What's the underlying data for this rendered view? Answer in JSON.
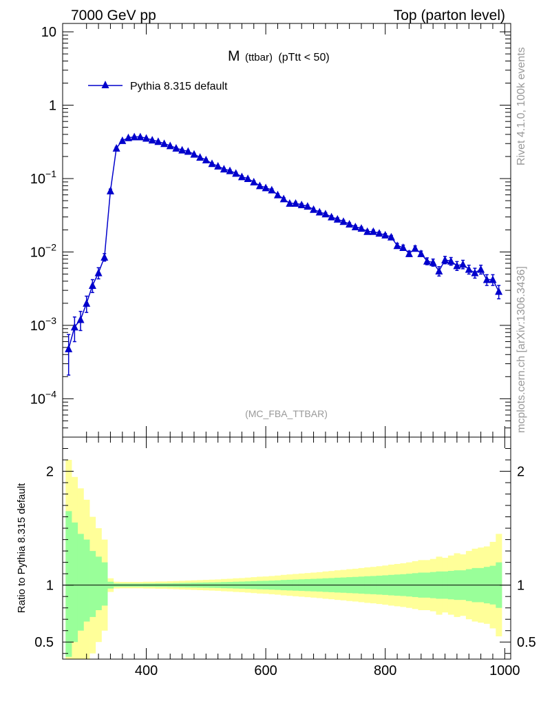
{
  "header": {
    "left": "7000 GeV pp",
    "right": "Top (parton level)"
  },
  "side_labels": {
    "rivet": "Rivet 4.1.0,  100k events",
    "source": "mcplots.cern.ch [arXiv:1306.3436]"
  },
  "colors": {
    "series": "#0000cc",
    "band_inner": "#99ff99",
    "band_outer": "#ffff99",
    "axis": "#000000",
    "watermark": "#999999"
  },
  "chart_data": [
    {
      "type": "line",
      "title_main": "M",
      "title_sub": "(ttbar)",
      "title_cut": "(pTtt < 50)",
      "watermark": "(MC_FBA_TTBAR)",
      "legend": [
        "Pythia 8.315 default"
      ],
      "legend_position": "top-left",
      "yscale": "log",
      "xlim": [
        260,
        1010
      ],
      "ylim": [
        3e-05,
        13
      ],
      "ytick_labels": [
        {
          "value": 10,
          "label": "10"
        },
        {
          "value": 1,
          "label": "1"
        },
        {
          "value": 0.1,
          "base": "10",
          "exp": "−1"
        },
        {
          "value": 0.01,
          "base": "10",
          "exp": "−2"
        },
        {
          "value": 0.001,
          "base": "10",
          "exp": "−3"
        },
        {
          "value": 0.0001,
          "base": "10",
          "exp": "−4"
        }
      ],
      "series": [
        {
          "name": "Pythia 8.315 default",
          "marker": "triangle",
          "x": [
            270,
            280,
            290,
            300,
            310,
            320,
            330,
            340,
            350,
            360,
            370,
            380,
            390,
            400,
            410,
            420,
            430,
            440,
            450,
            460,
            470,
            480,
            490,
            500,
            510,
            520,
            530,
            540,
            550,
            560,
            570,
            580,
            590,
            600,
            610,
            620,
            630,
            640,
            650,
            660,
            670,
            680,
            690,
            700,
            710,
            720,
            730,
            740,
            750,
            760,
            770,
            780,
            790,
            800,
            810,
            820,
            830,
            840,
            850,
            860,
            870,
            880,
            890,
            900,
            910,
            920,
            930,
            940,
            950,
            960,
            970,
            980,
            990
          ],
          "y": [
            0.00048,
            0.00095,
            0.0012,
            0.002,
            0.0035,
            0.0052,
            0.0085,
            0.068,
            0.26,
            0.33,
            0.36,
            0.37,
            0.37,
            0.355,
            0.335,
            0.32,
            0.3,
            0.28,
            0.26,
            0.245,
            0.235,
            0.215,
            0.195,
            0.18,
            0.16,
            0.148,
            0.135,
            0.128,
            0.118,
            0.106,
            0.1,
            0.09,
            0.08,
            0.075,
            0.07,
            0.06,
            0.053,
            0.046,
            0.046,
            0.044,
            0.042,
            0.038,
            0.035,
            0.033,
            0.03,
            0.028,
            0.026,
            0.024,
            0.022,
            0.021,
            0.019,
            0.019,
            0.018,
            0.017,
            0.016,
            0.0122,
            0.0115,
            0.0095,
            0.0112,
            0.0095,
            0.0075,
            0.0072,
            0.0055,
            0.0078,
            0.0075,
            0.0065,
            0.0068,
            0.0058,
            0.0052,
            0.0058,
            0.0042,
            0.0042,
            0.0029
          ],
          "yerr": [
            0.00027,
            0.00035,
            0.00035,
            0.0005,
            0.0007,
            0.0009,
            0.001,
            0.004,
            0.008,
            0.009,
            0.009,
            0.009,
            0.009,
            0.008,
            0.008,
            0.008,
            0.007,
            0.007,
            0.007,
            0.006,
            0.006,
            0.006,
            0.005,
            0.005,
            0.005,
            0.004,
            0.004,
            0.004,
            0.004,
            0.003,
            0.003,
            0.003,
            0.003,
            0.0025,
            0.0025,
            0.002,
            0.002,
            0.0018,
            0.0018,
            0.0017,
            0.0016,
            0.0015,
            0.0014,
            0.0013,
            0.0012,
            0.0012,
            0.0011,
            0.001,
            0.001,
            0.0009,
            0.0009,
            0.0009,
            0.0008,
            0.0008,
            0.0008,
            0.0009,
            0.0009,
            0.0008,
            0.0009,
            0.0008,
            0.0008,
            0.0008,
            0.0008,
            0.0009,
            0.0009,
            0.0009,
            0.0009,
            0.0008,
            0.0008,
            0.0008,
            0.0007,
            0.0007,
            0.0006
          ]
        }
      ]
    },
    {
      "type": "area",
      "ylabel": "Ratio to Pythia 8.315 default",
      "xlim": [
        260,
        1010
      ],
      "ylim": [
        0.35,
        2.3
      ],
      "x_ticks": [
        400,
        600,
        800,
        1000
      ],
      "y_tick_labels": [
        {
          "value": 2,
          "label": "2"
        },
        {
          "value": 1,
          "label": "1"
        },
        {
          "value": 0.5,
          "label": "0.5"
        }
      ],
      "reference_line": 1,
      "bins": {
        "x_start": 270,
        "width": 10,
        "inner_up": [
          1.65,
          1.55,
          1.45,
          1.4,
          1.3,
          1.25,
          1.2,
          1.03,
          1.015,
          1.014,
          1.014,
          1.014,
          1.014,
          1.015,
          1.015,
          1.016,
          1.016,
          1.017,
          1.018,
          1.019,
          1.02,
          1.021,
          1.022,
          1.023,
          1.024,
          1.025,
          1.027,
          1.028,
          1.03,
          1.031,
          1.033,
          1.035,
          1.037,
          1.038,
          1.04,
          1.042,
          1.045,
          1.047,
          1.049,
          1.051,
          1.053,
          1.055,
          1.057,
          1.06,
          1.062,
          1.065,
          1.067,
          1.07,
          1.072,
          1.075,
          1.078,
          1.08,
          1.083,
          1.086,
          1.09,
          1.093,
          1.096,
          1.1,
          1.105,
          1.11,
          1.11,
          1.115,
          1.12,
          1.12,
          1.125,
          1.13,
          1.13,
          1.14,
          1.15,
          1.15,
          1.16,
          1.17,
          1.2
        ],
        "inner_dn": [
          0.37,
          0.5,
          0.6,
          0.68,
          0.72,
          0.78,
          0.82,
          0.97,
          0.985,
          0.986,
          0.986,
          0.986,
          0.986,
          0.985,
          0.985,
          0.984,
          0.984,
          0.983,
          0.982,
          0.981,
          0.98,
          0.979,
          0.978,
          0.977,
          0.976,
          0.975,
          0.973,
          0.972,
          0.97,
          0.969,
          0.967,
          0.965,
          0.963,
          0.962,
          0.96,
          0.958,
          0.955,
          0.953,
          0.951,
          0.949,
          0.947,
          0.945,
          0.943,
          0.94,
          0.938,
          0.935,
          0.933,
          0.93,
          0.928,
          0.925,
          0.922,
          0.92,
          0.917,
          0.914,
          0.91,
          0.907,
          0.904,
          0.9,
          0.895,
          0.89,
          0.89,
          0.885,
          0.88,
          0.88,
          0.875,
          0.87,
          0.87,
          0.86,
          0.85,
          0.85,
          0.84,
          0.83,
          0.8
        ],
        "outer_up": [
          2.1,
          1.95,
          1.85,
          1.75,
          1.6,
          1.5,
          1.4,
          1.06,
          1.03,
          1.028,
          1.028,
          1.028,
          1.028,
          1.03,
          1.03,
          1.032,
          1.032,
          1.034,
          1.036,
          1.038,
          1.04,
          1.042,
          1.044,
          1.046,
          1.048,
          1.05,
          1.054,
          1.056,
          1.06,
          1.062,
          1.066,
          1.07,
          1.074,
          1.076,
          1.08,
          1.084,
          1.09,
          1.094,
          1.098,
          1.102,
          1.106,
          1.11,
          1.114,
          1.12,
          1.124,
          1.13,
          1.134,
          1.14,
          1.144,
          1.15,
          1.156,
          1.16,
          1.166,
          1.172,
          1.18,
          1.186,
          1.192,
          1.2,
          1.21,
          1.22,
          1.22,
          1.23,
          1.25,
          1.24,
          1.26,
          1.28,
          1.27,
          1.3,
          1.32,
          1.33,
          1.34,
          1.38,
          1.45
        ],
        "outer_dn": [
          0.35,
          0.35,
          0.35,
          0.35,
          0.4,
          0.5,
          0.6,
          0.94,
          0.97,
          0.972,
          0.972,
          0.972,
          0.972,
          0.97,
          0.97,
          0.968,
          0.968,
          0.966,
          0.964,
          0.962,
          0.96,
          0.958,
          0.956,
          0.954,
          0.952,
          0.95,
          0.946,
          0.944,
          0.94,
          0.938,
          0.934,
          0.93,
          0.926,
          0.924,
          0.92,
          0.916,
          0.91,
          0.906,
          0.902,
          0.898,
          0.894,
          0.89,
          0.886,
          0.88,
          0.876,
          0.87,
          0.866,
          0.86,
          0.856,
          0.85,
          0.844,
          0.84,
          0.834,
          0.828,
          0.82,
          0.814,
          0.808,
          0.8,
          0.79,
          0.78,
          0.78,
          0.77,
          0.74,
          0.76,
          0.74,
          0.72,
          0.73,
          0.7,
          0.68,
          0.67,
          0.66,
          0.62,
          0.55
        ]
      }
    }
  ]
}
